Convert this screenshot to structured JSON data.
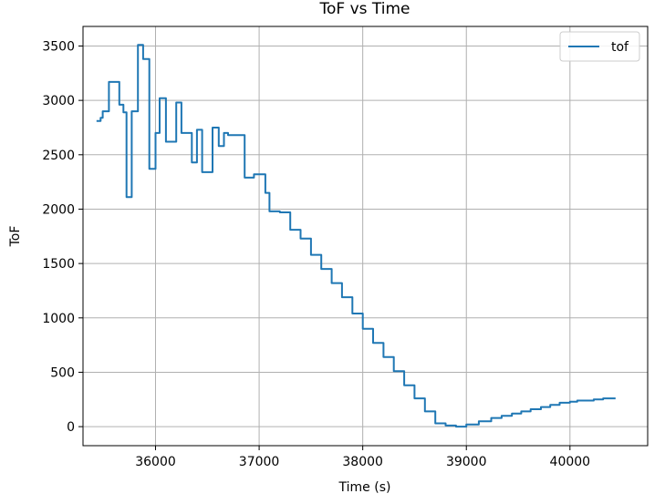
{
  "chart_data": {
    "type": "line",
    "title": "ToF vs Time",
    "xlabel": "Time (s)",
    "ylabel": "ToF",
    "xlim": [
      35300,
      40750
    ],
    "ylim": [
      -175,
      3680
    ],
    "x_ticks": [
      36000,
      37000,
      38000,
      39000,
      40000
    ],
    "y_ticks": [
      0,
      500,
      1000,
      1500,
      2000,
      2500,
      3000,
      3500
    ],
    "grid": true,
    "legend_position": "top-right",
    "line_color": "#1f77b4",
    "series": [
      {
        "name": "tof",
        "points": [
          [
            35430,
            2810
          ],
          [
            35470,
            2810
          ],
          [
            35470,
            2840
          ],
          [
            35490,
            2840
          ],
          [
            35490,
            2900
          ],
          [
            35550,
            2900
          ],
          [
            35550,
            3170
          ],
          [
            35650,
            3170
          ],
          [
            35650,
            2960
          ],
          [
            35690,
            2960
          ],
          [
            35690,
            2890
          ],
          [
            35720,
            2890
          ],
          [
            35720,
            2110
          ],
          [
            35770,
            2110
          ],
          [
            35770,
            2900
          ],
          [
            35830,
            2900
          ],
          [
            35830,
            3510
          ],
          [
            35880,
            3510
          ],
          [
            35880,
            3380
          ],
          [
            35940,
            3380
          ],
          [
            35940,
            2370
          ],
          [
            36000,
            2370
          ],
          [
            36000,
            2700
          ],
          [
            36040,
            2700
          ],
          [
            36040,
            3020
          ],
          [
            36100,
            3020
          ],
          [
            36100,
            2620
          ],
          [
            36200,
            2620
          ],
          [
            36200,
            2980
          ],
          [
            36250,
            2980
          ],
          [
            36250,
            2700
          ],
          [
            36350,
            2700
          ],
          [
            36350,
            2430
          ],
          [
            36400,
            2430
          ],
          [
            36400,
            2730
          ],
          [
            36450,
            2730
          ],
          [
            36450,
            2340
          ],
          [
            36550,
            2340
          ],
          [
            36550,
            2750
          ],
          [
            36610,
            2750
          ],
          [
            36610,
            2580
          ],
          [
            36660,
            2580
          ],
          [
            36660,
            2700
          ],
          [
            36700,
            2700
          ],
          [
            36700,
            2680
          ],
          [
            36860,
            2680
          ],
          [
            36860,
            2290
          ],
          [
            36950,
            2290
          ],
          [
            36950,
            2320
          ],
          [
            37060,
            2320
          ],
          [
            37060,
            2150
          ],
          [
            37100,
            2150
          ],
          [
            37100,
            1980
          ],
          [
            37200,
            1980
          ],
          [
            37200,
            1970
          ],
          [
            37300,
            1970
          ],
          [
            37300,
            1810
          ],
          [
            37400,
            1810
          ],
          [
            37400,
            1730
          ],
          [
            37500,
            1730
          ],
          [
            37500,
            1580
          ],
          [
            37600,
            1580
          ],
          [
            37600,
            1450
          ],
          [
            37700,
            1450
          ],
          [
            37700,
            1320
          ],
          [
            37800,
            1320
          ],
          [
            37800,
            1190
          ],
          [
            37900,
            1190
          ],
          [
            37900,
            1040
          ],
          [
            38000,
            1040
          ],
          [
            38000,
            900
          ],
          [
            38100,
            900
          ],
          [
            38100,
            770
          ],
          [
            38200,
            770
          ],
          [
            38200,
            640
          ],
          [
            38300,
            640
          ],
          [
            38300,
            510
          ],
          [
            38400,
            510
          ],
          [
            38400,
            380
          ],
          [
            38500,
            380
          ],
          [
            38500,
            260
          ],
          [
            38600,
            260
          ],
          [
            38600,
            140
          ],
          [
            38700,
            140
          ],
          [
            38700,
            30
          ],
          [
            38800,
            30
          ],
          [
            38800,
            10
          ],
          [
            38900,
            10
          ],
          [
            38900,
            0
          ],
          [
            39000,
            0
          ],
          [
            39000,
            20
          ],
          [
            39120,
            20
          ],
          [
            39120,
            50
          ],
          [
            39240,
            50
          ],
          [
            39240,
            80
          ],
          [
            39340,
            80
          ],
          [
            39340,
            100
          ],
          [
            39440,
            100
          ],
          [
            39440,
            120
          ],
          [
            39530,
            120
          ],
          [
            39530,
            140
          ],
          [
            39620,
            140
          ],
          [
            39620,
            160
          ],
          [
            39720,
            160
          ],
          [
            39720,
            180
          ],
          [
            39810,
            180
          ],
          [
            39810,
            200
          ],
          [
            39900,
            200
          ],
          [
            39900,
            220
          ],
          [
            40000,
            220
          ],
          [
            40000,
            230
          ],
          [
            40070,
            230
          ],
          [
            40070,
            240
          ],
          [
            40230,
            240
          ],
          [
            40230,
            250
          ],
          [
            40320,
            250
          ],
          [
            40320,
            260
          ],
          [
            40440,
            260
          ]
        ]
      }
    ]
  }
}
